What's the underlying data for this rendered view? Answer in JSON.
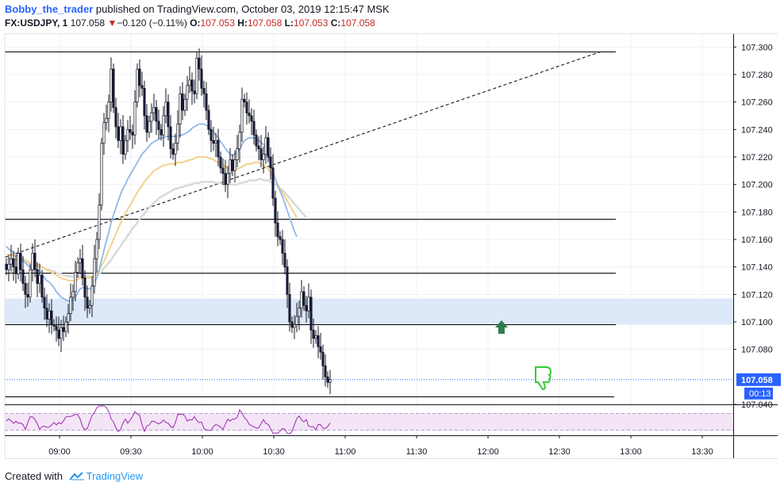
{
  "header": {
    "author": "Bobby_the_trader",
    "published": "published on TradingView.com, October 03, 2019 12:15:47 MSK",
    "symbol": "FX:USDJPY, 1",
    "last": "107.058",
    "change": "−0.120 (−0.11%)",
    "o_label": "O:",
    "o": "107.053",
    "h_label": "H:",
    "h": "107.058",
    "l_label": "L:",
    "l": "107.053",
    "c_label": "C:",
    "c": "107.058",
    "down_arrow": "▼"
  },
  "footer": {
    "created": "Created with",
    "brand": "TradingView"
  },
  "colors": {
    "up": "#ffffff",
    "down": "#1a1a40",
    "wick": "#131722",
    "ema_fast": "#90b8e8",
    "ema_mid": "#f3d28a",
    "ema_slow": "#d9d9d9",
    "zone": "#dde8f8",
    "rsi_line": "#9c27b0",
    "rsi_band": "#f3e5f5",
    "price_tag": "#2962ff",
    "arrow_up": "#2e7d4f",
    "thumb": "#33cc33"
  },
  "chart_data": {
    "type": "candlestick",
    "symbol": "FX:USDJPY",
    "interval": "1",
    "ylim": [
      107.04,
      107.31
    ],
    "y_ticks": [
      "107.300",
      "107.280",
      "107.260",
      "107.240",
      "107.220",
      "107.200",
      "107.180",
      "107.160",
      "107.140",
      "107.120",
      "107.100",
      "107.080",
      "107.040"
    ],
    "x_ticks": [
      "09:00",
      "09:30",
      "10:00",
      "10:30",
      "11:00",
      "11:30",
      "12:00",
      "12:30",
      "13:00",
      "13:30"
    ],
    "x_start": "08:37",
    "current_price": "107.058",
    "countdown": "00:13",
    "levels": [
      107.297,
      107.175,
      107.136,
      107.098,
      107.046
    ],
    "zone": [
      107.098,
      107.117
    ],
    "trendline": {
      "from": [
        "08:37",
        107.147
      ],
      "to": [
        "12:48",
        107.297
      ]
    },
    "closes": [
      107.138,
      107.142,
      107.146,
      107.14,
      107.135,
      107.15,
      107.138,
      107.128,
      107.12,
      107.118,
      107.138,
      107.15,
      107.138,
      107.128,
      107.134,
      107.118,
      107.11,
      107.102,
      107.108,
      107.098,
      107.097,
      107.094,
      107.088,
      107.096,
      107.093,
      107.1,
      107.106,
      107.118,
      107.122,
      107.136,
      107.143,
      107.146,
      107.132,
      107.118,
      107.11,
      107.112,
      107.126,
      107.146,
      107.16,
      107.185,
      107.23,
      107.245,
      107.248,
      107.26,
      107.284,
      107.256,
      107.242,
      107.232,
      107.242,
      107.222,
      107.232,
      107.24,
      107.238,
      107.236,
      107.26,
      107.284,
      107.272,
      107.27,
      107.25,
      107.238,
      107.246,
      107.252,
      107.256,
      107.246,
      107.24,
      107.236,
      107.25,
      107.26,
      107.242,
      107.226,
      107.222,
      107.23,
      107.244,
      107.266,
      107.254,
      107.262,
      107.272,
      107.276,
      107.268,
      107.266,
      107.292,
      107.284,
      107.27,
      107.266,
      107.254,
      107.24,
      107.232,
      107.23,
      107.232,
      107.22,
      107.212,
      107.208,
      107.2,
      107.208,
      107.218,
      107.21,
      107.218,
      107.226,
      107.238,
      107.262,
      107.26,
      107.252,
      107.25,
      107.246,
      107.236,
      107.228,
      107.226,
      107.218,
      107.222,
      107.234,
      107.22,
      107.212,
      107.19,
      107.172,
      107.162,
      107.16,
      107.15,
      107.14,
      107.12,
      107.1,
      107.096,
      107.098,
      107.104,
      107.11,
      107.122,
      107.112,
      107.108,
      107.118,
      107.094,
      107.088,
      107.09,
      107.082,
      107.078,
      107.068,
      107.06,
      107.056,
      107.058
    ],
    "ema_fast": [
      107.155,
      107.153,
      107.152,
      107.151,
      107.149,
      107.148,
      107.146,
      107.145,
      107.143,
      107.141,
      107.14,
      107.139,
      107.139,
      107.138,
      107.137,
      107.135,
      107.132,
      107.13,
      107.129,
      107.127,
      107.125,
      107.122,
      107.12,
      107.118,
      107.117,
      107.116,
      107.115,
      107.115,
      107.116,
      107.118,
      107.121,
      107.124,
      107.125,
      107.125,
      107.124,
      107.124,
      107.125,
      107.128,
      107.132,
      107.138,
      107.145,
      107.152,
      107.159,
      107.165,
      107.172,
      107.178,
      107.183,
      107.188,
      107.193,
      107.197,
      107.2,
      107.204,
      107.207,
      107.21,
      107.213,
      107.216,
      107.219,
      107.222,
      107.224,
      107.226,
      107.228,
      107.23,
      107.231,
      107.232,
      107.233,
      107.234,
      107.234,
      107.235,
      107.235,
      107.235,
      107.235,
      107.235,
      107.235,
      107.236,
      107.236,
      107.237,
      107.238,
      107.239,
      107.241,
      107.242,
      107.243,
      107.244,
      107.244,
      107.244,
      107.243,
      107.242,
      107.24,
      107.238,
      107.236,
      107.234,
      107.231,
      107.229,
      107.226,
      107.224,
      107.222,
      107.221,
      107.222,
      107.224,
      107.226,
      107.229,
      107.232,
      107.233,
      107.234,
      107.234,
      107.234,
      107.233,
      107.232,
      107.231,
      107.229,
      107.227,
      107.222,
      107.216,
      107.21,
      107.204,
      107.199,
      107.195,
      107.191,
      107.186,
      107.181,
      107.176,
      107.171,
      107.166,
      107.162
    ],
    "ema_mid": [
      107.149,
      107.149,
      107.149,
      107.148,
      107.148,
      107.148,
      107.147,
      107.146,
      107.145,
      107.144,
      107.143,
      107.143,
      107.142,
      107.142,
      107.141,
      107.14,
      107.139,
      107.138,
      107.137,
      107.136,
      107.135,
      107.134,
      107.133,
      107.132,
      107.131,
      107.131,
      107.13,
      107.13,
      107.13,
      107.13,
      107.131,
      107.132,
      107.132,
      107.132,
      107.132,
      107.132,
      107.133,
      107.134,
      107.135,
      107.138,
      107.141,
      107.144,
      107.148,
      107.152,
      107.156,
      107.16,
      107.164,
      107.168,
      107.172,
      107.175,
      107.179,
      107.182,
      107.185,
      107.188,
      107.191,
      107.194,
      107.197,
      107.199,
      107.202,
      107.204,
      107.206,
      107.208,
      107.21,
      107.211,
      107.212,
      107.213,
      107.214,
      107.214,
      107.215,
      107.215,
      107.215,
      107.215,
      107.216,
      107.216,
      107.216,
      107.217,
      107.217,
      107.218,
      107.218,
      107.219,
      107.22,
      107.22,
      107.22,
      107.22,
      107.22,
      107.219,
      107.219,
      107.218,
      107.217,
      107.216,
      107.215,
      107.214,
      107.213,
      107.212,
      107.211,
      107.211,
      107.211,
      107.211,
      107.212,
      107.213,
      107.214,
      107.215,
      107.215,
      107.215,
      107.216,
      107.216,
      107.216,
      107.215,
      107.214,
      107.213,
      107.211,
      107.209,
      107.206,
      107.203,
      107.2,
      107.197,
      107.194,
      107.191,
      107.188,
      107.185,
      107.182,
      107.179,
      107.176
    ],
    "ema_slow": [
      107.146,
      107.146,
      107.146,
      107.145,
      107.145,
      107.145,
      107.144,
      107.144,
      107.143,
      107.143,
      107.142,
      107.142,
      107.141,
      107.141,
      107.14,
      107.14,
      107.139,
      107.138,
      107.138,
      107.137,
      107.137,
      107.136,
      107.135,
      107.135,
      107.134,
      107.134,
      107.133,
      107.133,
      107.133,
      107.133,
      107.133,
      107.133,
      107.133,
      107.133,
      107.133,
      107.133,
      107.133,
      107.134,
      107.134,
      107.135,
      107.137,
      107.139,
      107.141,
      107.143,
      107.145,
      107.148,
      107.15,
      107.153,
      107.155,
      107.158,
      107.16,
      107.163,
      107.165,
      107.168,
      107.17,
      107.172,
      107.175,
      107.177,
      107.179,
      107.181,
      107.183,
      107.185,
      107.187,
      107.188,
      107.19,
      107.191,
      107.192,
      107.193,
      107.194,
      107.195,
      107.196,
      107.197,
      107.197,
      107.198,
      107.198,
      107.199,
      107.199,
      107.2,
      107.2,
      107.201,
      107.201,
      107.201,
      107.202,
      107.202,
      107.202,
      107.202,
      107.202,
      107.202,
      107.201,
      107.201,
      107.201,
      107.2,
      107.2,
      107.2,
      107.2,
      107.2,
      107.2,
      107.2,
      107.201,
      107.201,
      107.202,
      107.202,
      107.203,
      107.203,
      107.203,
      107.203,
      107.204,
      107.204,
      107.203,
      107.203,
      107.203,
      107.202,
      107.201,
      107.2,
      107.199,
      107.197,
      107.196,
      107.194,
      107.192,
      107.19,
      107.188,
      107.186,
      107.184,
      107.182,
      107.18,
      107.178,
      107.176
    ]
  }
}
